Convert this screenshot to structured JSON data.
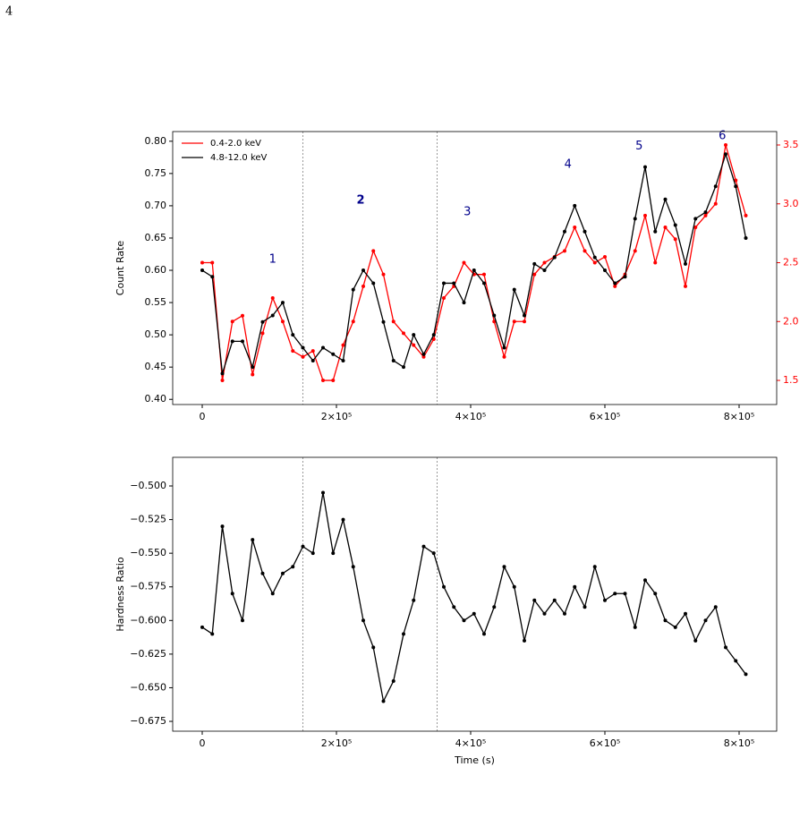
{
  "page_number": "4",
  "chart_data": [
    {
      "type": "line",
      "ylabel": "Count Rate",
      "x": [
        0,
        15000,
        30000,
        45000,
        60000,
        75000,
        90000,
        105000,
        120000,
        135000,
        150000,
        165000,
        180000,
        195000,
        210000,
        225000,
        240000,
        255000,
        270000,
        285000,
        300000,
        315000,
        330000,
        345000,
        360000,
        375000,
        390000,
        405000,
        420000,
        435000,
        450000,
        465000,
        480000,
        495000,
        510000,
        525000,
        540000,
        555000,
        570000,
        585000,
        600000,
        615000,
        630000,
        645000,
        660000,
        675000,
        690000,
        705000,
        720000,
        735000,
        750000,
        765000,
        780000,
        795000,
        810000
      ],
      "series": [
        {
          "name": "0.4-2.0 keV",
          "color": "#ff0000",
          "axis": "y2",
          "values": [
            2.5,
            2.5,
            1.5,
            2.0,
            2.05,
            1.55,
            1.9,
            2.2,
            2.0,
            1.75,
            1.7,
            1.75,
            1.5,
            1.5,
            1.8,
            2.0,
            2.3,
            2.6,
            2.4,
            2.0,
            1.9,
            1.8,
            1.7,
            1.85,
            2.2,
            2.3,
            2.5,
            2.4,
            2.4,
            2.0,
            1.7,
            2.0,
            2.0,
            2.4,
            2.5,
            2.55,
            2.6,
            2.8,
            2.6,
            2.5,
            2.55,
            2.3,
            2.4,
            2.6,
            2.9,
            2.5,
            2.8,
            2.7,
            2.3,
            2.8,
            2.9,
            3.0,
            3.5,
            3.2,
            2.9
          ]
        },
        {
          "name": "4.8-12.0 keV",
          "color": "#000000",
          "values": [
            0.6,
            0.59,
            0.44,
            0.49,
            0.49,
            0.45,
            0.52,
            0.53,
            0.55,
            0.5,
            0.48,
            0.46,
            0.48,
            0.47,
            0.46,
            0.57,
            0.6,
            0.58,
            0.52,
            0.46,
            0.45,
            0.5,
            0.47,
            0.5,
            0.58,
            0.58,
            0.55,
            0.6,
            0.58,
            0.53,
            0.48,
            0.57,
            0.53,
            0.61,
            0.6,
            0.62,
            0.66,
            0.7,
            0.66,
            0.62,
            0.6,
            0.58,
            0.59,
            0.68,
            0.76,
            0.66,
            0.71,
            0.67,
            0.61,
            0.68,
            0.69,
            0.73,
            0.78,
            0.73,
            0.65
          ]
        }
      ],
      "xlim": [
        -44000,
        856000
      ],
      "xticks": [
        0,
        {
          "value": 200000,
          "label": "2×10⁵"
        },
        {
          "value": 400000,
          "label": "4×10⁵"
        },
        {
          "value": 600000,
          "label": "6×10⁵"
        },
        {
          "value": 800000,
          "label": "8×10⁵"
        }
      ],
      "ylim": [
        0.392,
        0.815
      ],
      "yticks": [
        {
          "value": 0.4,
          "label": "0.40"
        },
        0.45,
        {
          "value": 0.5,
          "label": "0.50"
        },
        0.55,
        {
          "value": 0.6,
          "label": "0.60"
        },
        0.65,
        {
          "value": 0.7,
          "label": "0.70"
        },
        0.75,
        {
          "value": 0.8,
          "label": "0.80"
        }
      ],
      "y2lim": [
        1.295,
        3.614
      ],
      "y2ticks": [
        1.5,
        {
          "value": 2.0,
          "label": "2.0"
        },
        2.5,
        {
          "value": 3.0,
          "label": "3.0"
        },
        3.5
      ],
      "y2color": "#ff0000",
      "vlines": [
        150000,
        350000
      ],
      "annotations": [
        {
          "text": "1",
          "x": 105000,
          "y": 0.617,
          "color": "#00008b"
        },
        {
          "text": "2",
          "x": 236000,
          "y": 0.708,
          "color": "#00008b",
          "weight": "bold"
        },
        {
          "text": "3",
          "x": 395000,
          "y": 0.69,
          "color": "#00008b"
        },
        {
          "text": "4",
          "x": 545000,
          "y": 0.764,
          "color": "#00008b"
        },
        {
          "text": "5",
          "x": 651000,
          "y": 0.792,
          "color": "#00008b"
        },
        {
          "text": "6",
          "x": 775000,
          "y": 0.808,
          "color": "#00008b"
        }
      ],
      "legend": "upper left"
    },
    {
      "type": "line",
      "ylabel": "Hardness Ratio",
      "xlabel": "Time (s)",
      "color": "#000000",
      "x": [
        0,
        15000,
        30000,
        45000,
        60000,
        75000,
        90000,
        105000,
        120000,
        135000,
        150000,
        165000,
        180000,
        195000,
        210000,
        225000,
        240000,
        255000,
        270000,
        285000,
        300000,
        315000,
        330000,
        345000,
        360000,
        375000,
        390000,
        405000,
        420000,
        435000,
        450000,
        465000,
        480000,
        495000,
        510000,
        525000,
        540000,
        555000,
        570000,
        585000,
        600000,
        615000,
        630000,
        645000,
        660000,
        675000,
        690000,
        705000,
        720000,
        735000,
        750000,
        765000,
        780000,
        795000,
        810000
      ],
      "values": [
        -0.605,
        -0.61,
        -0.53,
        -0.58,
        -0.6,
        -0.54,
        -0.565,
        -0.58,
        -0.565,
        -0.56,
        -0.545,
        -0.55,
        -0.505,
        -0.55,
        -0.525,
        -0.56,
        -0.6,
        -0.62,
        -0.66,
        -0.645,
        -0.61,
        -0.585,
        -0.545,
        -0.55,
        -0.575,
        -0.59,
        -0.6,
        -0.595,
        -0.61,
        -0.59,
        -0.56,
        -0.575,
        -0.615,
        -0.585,
        -0.595,
        -0.585,
        -0.595,
        -0.575,
        -0.59,
        -0.56,
        -0.585,
        -0.58,
        -0.58,
        -0.605,
        -0.57,
        -0.58,
        -0.6,
        -0.605,
        -0.595,
        -0.615,
        -0.6,
        -0.59,
        -0.62,
        -0.63,
        -0.64
      ],
      "xlim": [
        -44000,
        856000
      ],
      "xticks": [
        0,
        {
          "value": 200000,
          "label": "2×10⁵"
        },
        {
          "value": 400000,
          "label": "4×10⁵"
        },
        {
          "value": 600000,
          "label": "6×10⁵"
        },
        {
          "value": 800000,
          "label": "8×10⁵"
        }
      ],
      "ylim": [
        -0.6823,
        -0.4787
      ],
      "yticks": [
        {
          "value": -0.5,
          "label": "−0.500"
        },
        {
          "value": -0.525,
          "label": "−0.525"
        },
        {
          "value": -0.55,
          "label": "−0.550"
        },
        {
          "value": -0.575,
          "label": "−0.575"
        },
        {
          "value": -0.6,
          "label": "−0.600"
        },
        {
          "value": -0.625,
          "label": "−0.625"
        },
        {
          "value": -0.65,
          "label": "−0.650"
        },
        {
          "value": -0.675,
          "label": "−0.675"
        }
      ],
      "vlines": [
        150000,
        350000
      ]
    }
  ]
}
